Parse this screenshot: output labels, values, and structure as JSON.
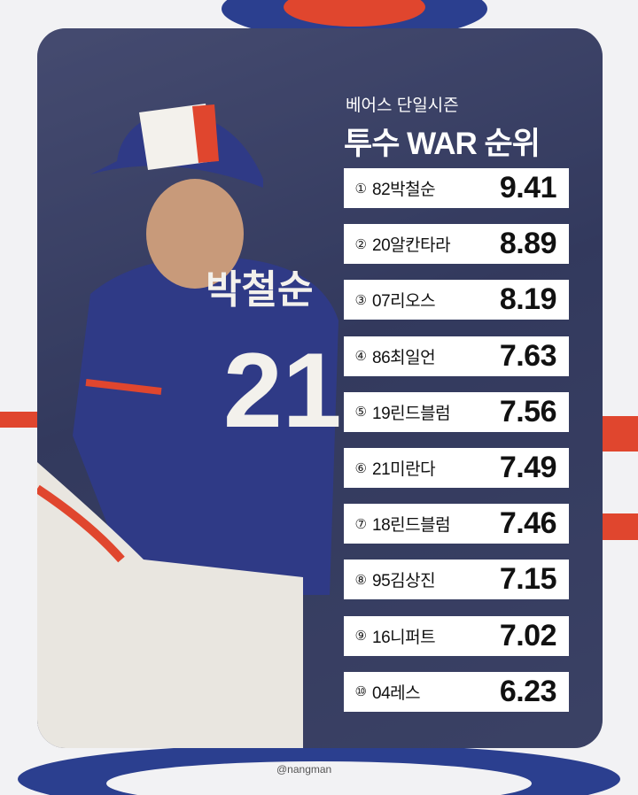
{
  "header": {
    "subtitle": "베어스 단일시즌",
    "title": "투수 WAR 순위"
  },
  "rankings": [
    {
      "rank": "①",
      "name": "82박철순",
      "war": "9.41"
    },
    {
      "rank": "②",
      "name": "20알칸타라",
      "war": "8.89"
    },
    {
      "rank": "③",
      "name": "07리오스",
      "war": "8.19"
    },
    {
      "rank": "④",
      "name": "86최일언",
      "war": "7.63"
    },
    {
      "rank": "⑤",
      "name": "19린드블럼",
      "war": "7.56"
    },
    {
      "rank": "⑥",
      "name": "21미란다",
      "war": "7.49"
    },
    {
      "rank": "⑦",
      "name": "18린드블럼",
      "war": "7.46"
    },
    {
      "rank": "⑧",
      "name": "95김상진",
      "war": "7.15"
    },
    {
      "rank": "⑨",
      "name": "16니퍼트",
      "war": "7.02"
    },
    {
      "rank": "⑩",
      "name": "04레스",
      "war": "6.23"
    }
  ],
  "watermark": "@nangman"
}
